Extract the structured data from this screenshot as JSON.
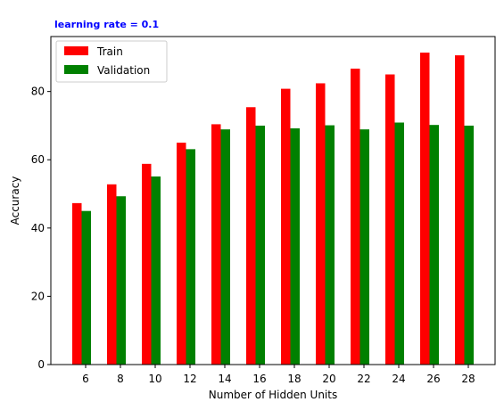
{
  "chart_data": {
    "type": "bar",
    "title": "learning rate = 0.1",
    "xlabel": "Number of Hidden Units",
    "ylabel": "Accuracy",
    "categories": [
      "6",
      "8",
      "10",
      "12",
      "14",
      "16",
      "18",
      "20",
      "22",
      "24",
      "26",
      "28"
    ],
    "series": [
      {
        "name": "Train",
        "color": "#ff0000",
        "values": [
          47.3,
          52.8,
          58.8,
          65.0,
          70.4,
          75.4,
          80.8,
          82.4,
          86.7,
          85.0,
          91.4,
          90.6
        ]
      },
      {
        "name": "Validation",
        "color": "#008000",
        "values": [
          45.0,
          49.3,
          55.1,
          63.1,
          68.9,
          70.0,
          69.2,
          70.1,
          68.9,
          70.9,
          70.2,
          70.0
        ]
      }
    ],
    "ylim": [
      0,
      96.1
    ],
    "yticks": [
      0,
      20,
      40,
      60,
      80
    ],
    "legend_position": "top-left",
    "grid": false
  }
}
